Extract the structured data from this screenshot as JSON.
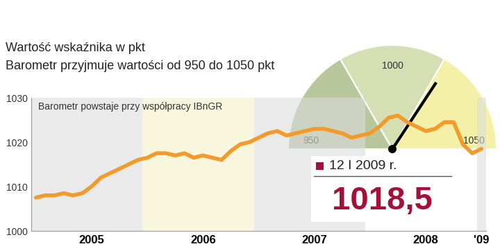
{
  "chart_data": {
    "type": "line",
    "title": "Wartość wskaźnika w pkt",
    "subtitle": "Barometr przyjmuje wartości od 950 do 1050 pkt",
    "annotation": "Barometr powstaje przy współpracy IBnGR",
    "categories": [
      null,
      null,
      null,
      null,
      null,
      null,
      "2005",
      null,
      null,
      null,
      null,
      null,
      null,
      null,
      null,
      null,
      null,
      null,
      "2006",
      null,
      null,
      null,
      null,
      null,
      null,
      null,
      null,
      null,
      null,
      null,
      "2007",
      null,
      null,
      null,
      null,
      null,
      null,
      null,
      null,
      null,
      null,
      null,
      "2008",
      null,
      null,
      null,
      null,
      null,
      "'09"
    ],
    "values": [
      1007.5,
      1008,
      1008,
      1008.5,
      1008,
      1008.5,
      1010,
      1012,
      1013,
      1014,
      1015,
      1016,
      1016.5,
      1017.5,
      1017.5,
      1017,
      1017.5,
      1016.5,
      1017,
      1016.5,
      1016,
      1018,
      1019.5,
      1020,
      1021,
      1022,
      1022.5,
      1021.5,
      1022,
      1022.5,
      1023,
      1023,
      1022.5,
      1022,
      1021,
      1021.5,
      1022,
      1023.5,
      1025.5,
      1026,
      1024.5,
      1023.5,
      1022.5,
      1023,
      1024.5,
      1024.5,
      1019.5,
      1017.5,
      1018.5
    ],
    "color": "#f39b2a",
    "ylim": [
      1000,
      1030
    ],
    "yticks": [
      1000,
      1010,
      1020,
      1030
    ],
    "grid": false,
    "gauge": {
      "min": 950,
      "max": 1050,
      "ticks": [
        950,
        1000,
        1050
      ],
      "value": 1018.5
    },
    "current": {
      "date": "12 I 2009 r.",
      "value": 1018.5,
      "label": "1018,5"
    }
  }
}
